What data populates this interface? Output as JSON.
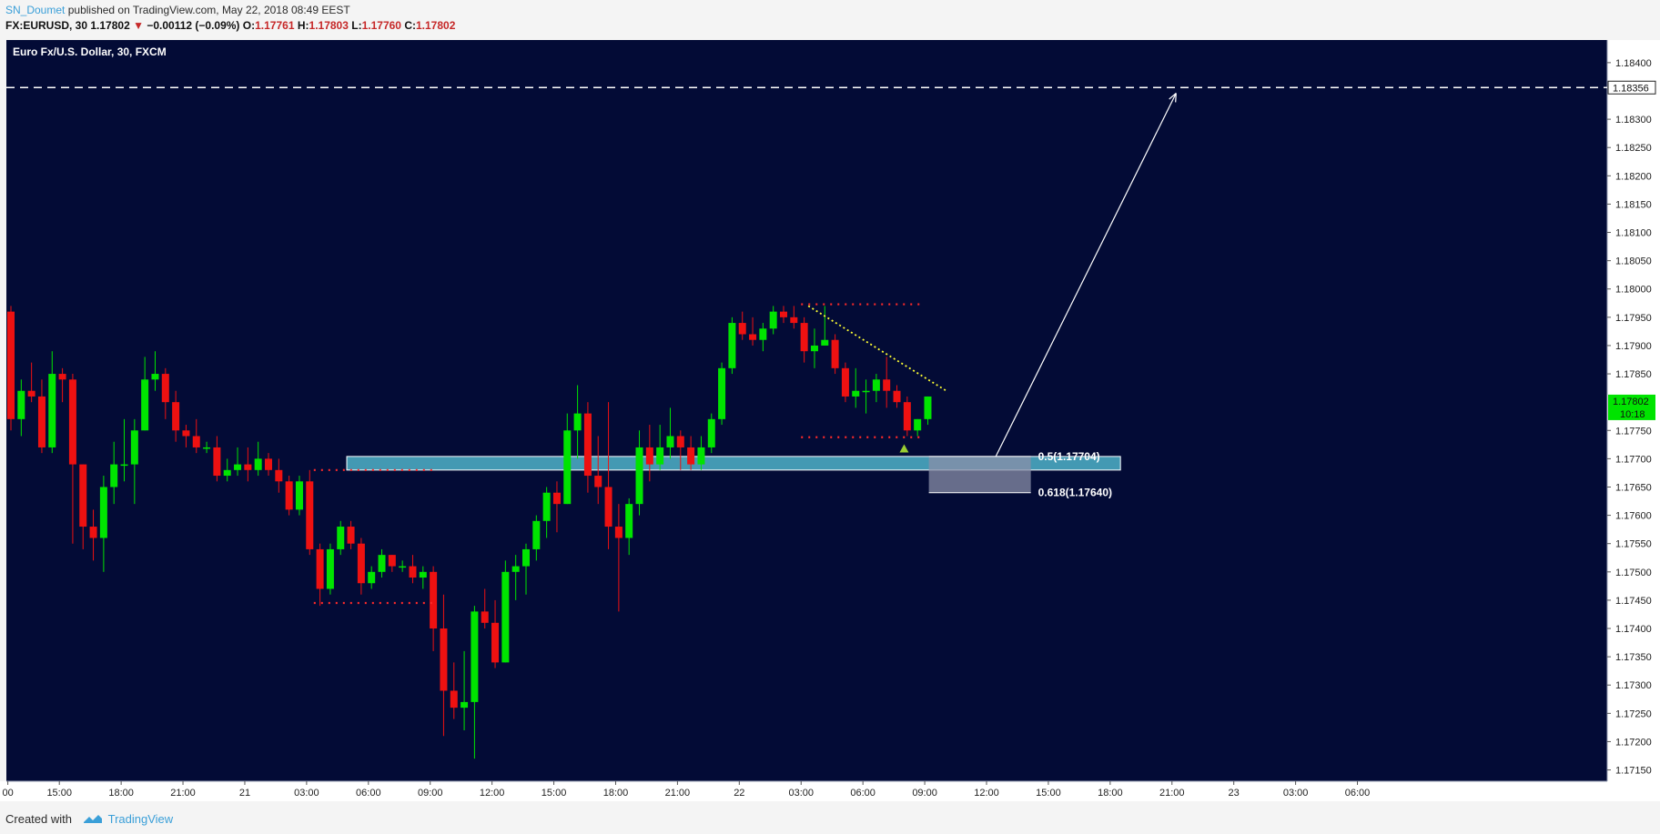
{
  "header": {
    "author": "SN_Doumet",
    "published": "published on TradingView.com, May 22, 2018 08:49 EEST"
  },
  "ohlc": {
    "symbol": "FX:EURUSD, 30",
    "last": "1.17802",
    "change": "−0.00112 (−0.09%)",
    "o_label": "O:",
    "o": "1.17761",
    "h_label": "H:",
    "h": "1.17803",
    "l_label": "L:",
    "l": "1.17760",
    "c_label": "C:",
    "c": "1.17802"
  },
  "chart_title": "Euro Fx/U.S. Dollar, 30, FXCM",
  "footer": {
    "created": "Created with",
    "brand": "TradingView"
  },
  "colors": {
    "background": "#030b36",
    "up": "#00e400",
    "down": "#ee1111",
    "zone": "#4fb3c9",
    "fib_zone": "#8a8fa8",
    "dotted": "#ff2a2a",
    "trend": "#ffff33",
    "text": "#ffffff",
    "axis_bg": "#ffffff",
    "price_tag": "#00e400"
  },
  "chart_data": {
    "type": "candlestick",
    "y_range": [
      1.1713,
      1.1844
    ],
    "y_ticks": [
      "1.18400",
      "1.18300",
      "1.18250",
      "1.18200",
      "1.18150",
      "1.18100",
      "1.18050",
      "1.18000",
      "1.17950",
      "1.17900",
      "1.17850",
      "1.17750",
      "1.17700",
      "1.17650",
      "1.17600",
      "1.17550",
      "1.17500",
      "1.17450",
      "1.17400",
      "1.17350",
      "1.17300",
      "1.17250",
      "1.17200",
      "1.17150"
    ],
    "y_tick_values": [
      1.184,
      1.183,
      1.1825,
      1.182,
      1.1815,
      1.181,
      1.1805,
      1.18,
      1.1795,
      1.179,
      1.1785,
      1.1775,
      1.177,
      1.1765,
      1.176,
      1.1755,
      1.175,
      1.1745,
      1.174,
      1.1735,
      1.173,
      1.1725,
      1.172,
      1.1715
    ],
    "x_ticks": [
      "00",
      "15:00",
      "18:00",
      "21:00",
      "21",
      "03:00",
      "06:00",
      "09:00",
      "12:00",
      "15:00",
      "18:00",
      "21:00",
      "22",
      "03:00",
      "06:00",
      "09:00",
      "12:00",
      "15:00",
      "18:00",
      "21:00",
      "23",
      "03:00",
      "06:00"
    ],
    "x_tick_bars": [
      -0.3,
      4.7,
      10.7,
      16.7,
      22.7,
      28.7,
      34.7,
      40.7,
      46.7,
      52.7,
      58.7,
      64.7,
      70.7,
      76.7,
      82.7,
      88.7,
      94.7,
      100.7,
      106.7,
      112.7,
      118.7,
      124.7,
      130.7
    ],
    "price_tags": {
      "target_level": "1.18356",
      "current": "1.17802",
      "countdown": "10:18"
    },
    "target_level": 1.18356,
    "fib_levels": [
      {
        "label": "0.5(1.17704)",
        "value": 1.17704
      },
      {
        "label": "0.618(1.17640)",
        "value": 1.1764
      }
    ],
    "support_zone": [
      1.1768,
      1.17704
    ],
    "candles": [
      [
        1.1796,
        1.1797,
        1.1775,
        1.1777
      ],
      [
        1.1777,
        1.1784,
        1.1774,
        1.1782
      ],
      [
        1.1782,
        1.1787,
        1.178,
        1.1781
      ],
      [
        1.1781,
        1.1784,
        1.1771,
        1.1772
      ],
      [
        1.1772,
        1.1789,
        1.1771,
        1.1785
      ],
      [
        1.1785,
        1.1786,
        1.178,
        1.1784
      ],
      [
        1.1784,
        1.1785,
        1.1755,
        1.1769
      ],
      [
        1.1769,
        1.1769,
        1.1754,
        1.1758
      ],
      [
        1.1758,
        1.1761,
        1.1752,
        1.1756
      ],
      [
        1.1756,
        1.1767,
        1.175,
        1.1765
      ],
      [
        1.1765,
        1.1773,
        1.1762,
        1.1769
      ],
      [
        1.1769,
        1.1777,
        1.1766,
        1.1769
      ],
      [
        1.1769,
        1.1777,
        1.1762,
        1.1775
      ],
      [
        1.1775,
        1.1788,
        1.1775,
        1.1784
      ],
      [
        1.1784,
        1.1789,
        1.1782,
        1.1785
      ],
      [
        1.1785,
        1.1786,
        1.1777,
        1.178
      ],
      [
        1.178,
        1.1782,
        1.1773,
        1.1775
      ],
      [
        1.1775,
        1.1776,
        1.1772,
        1.1774
      ],
      [
        1.1774,
        1.1777,
        1.1771,
        1.1772
      ],
      [
        1.1772,
        1.1773,
        1.1771,
        1.1772
      ],
      [
        1.1772,
        1.1774,
        1.1766,
        1.1767
      ],
      [
        1.1767,
        1.177,
        1.1766,
        1.1768
      ],
      [
        1.1768,
        1.1772,
        1.1767,
        1.1769
      ],
      [
        1.1769,
        1.1772,
        1.1766,
        1.1768
      ],
      [
        1.1768,
        1.1773,
        1.1767,
        1.177
      ],
      [
        1.177,
        1.1771,
        1.1767,
        1.1768
      ],
      [
        1.1768,
        1.177,
        1.1764,
        1.1766
      ],
      [
        1.1766,
        1.1767,
        1.176,
        1.1761
      ],
      [
        1.1761,
        1.1767,
        1.176,
        1.1766
      ],
      [
        1.1766,
        1.1768,
        1.1753,
        1.1754
      ],
      [
        1.1754,
        1.1755,
        1.1744,
        1.1747
      ],
      [
        1.1747,
        1.1755,
        1.1746,
        1.1754
      ],
      [
        1.1754,
        1.1759,
        1.1753,
        1.1758
      ],
      [
        1.1758,
        1.1759,
        1.1754,
        1.1755
      ],
      [
        1.1755,
        1.1756,
        1.1746,
        1.1748
      ],
      [
        1.1748,
        1.1751,
        1.1747,
        1.175
      ],
      [
        1.175,
        1.1754,
        1.1749,
        1.1753
      ],
      [
        1.1753,
        1.1753,
        1.175,
        1.1751
      ],
      [
        1.1751,
        1.1752,
        1.175,
        1.1751
      ],
      [
        1.1751,
        1.1753,
        1.1748,
        1.1749
      ],
      [
        1.1749,
        1.1751,
        1.1747,
        1.175
      ],
      [
        1.175,
        1.1751,
        1.1736,
        1.174
      ],
      [
        1.174,
        1.1746,
        1.1721,
        1.1729
      ],
      [
        1.1729,
        1.1734,
        1.1724,
        1.1726
      ],
      [
        1.1726,
        1.1736,
        1.1722,
        1.1727
      ],
      [
        1.1727,
        1.1744,
        1.1717,
        1.1743
      ],
      [
        1.1743,
        1.1747,
        1.174,
        1.1741
      ],
      [
        1.1741,
        1.1745,
        1.1733,
        1.1734
      ],
      [
        1.1734,
        1.1752,
        1.1734,
        1.175
      ],
      [
        1.175,
        1.1753,
        1.1745,
        1.1751
      ],
      [
        1.1751,
        1.1755,
        1.1746,
        1.1754
      ],
      [
        1.1754,
        1.176,
        1.1752,
        1.1759
      ],
      [
        1.1759,
        1.1765,
        1.1756,
        1.1764
      ],
      [
        1.1764,
        1.1766,
        1.1757,
        1.1762
      ],
      [
        1.1762,
        1.1778,
        1.1762,
        1.1775
      ],
      [
        1.1775,
        1.1783,
        1.177,
        1.1778
      ],
      [
        1.1778,
        1.178,
        1.1764,
        1.1767
      ],
      [
        1.1767,
        1.1774,
        1.1762,
        1.1765
      ],
      [
        1.1765,
        1.178,
        1.1754,
        1.1758
      ],
      [
        1.1758,
        1.1762,
        1.1743,
        1.1756
      ],
      [
        1.1756,
        1.1763,
        1.1753,
        1.1762
      ],
      [
        1.1762,
        1.1775,
        1.176,
        1.1772
      ],
      [
        1.1772,
        1.1776,
        1.1766,
        1.1769
      ],
      [
        1.1769,
        1.1776,
        1.1768,
        1.1772
      ],
      [
        1.1772,
        1.1779,
        1.177,
        1.1774
      ],
      [
        1.1774,
        1.1775,
        1.1768,
        1.1772
      ],
      [
        1.1772,
        1.1774,
        1.1768,
        1.1769
      ],
      [
        1.1769,
        1.1774,
        1.1768,
        1.1772
      ],
      [
        1.1772,
        1.1778,
        1.1771,
        1.1777
      ],
      [
        1.1777,
        1.1787,
        1.1776,
        1.1786
      ],
      [
        1.1786,
        1.1795,
        1.1785,
        1.1794
      ],
      [
        1.1794,
        1.1796,
        1.1791,
        1.1792
      ],
      [
        1.1792,
        1.1795,
        1.179,
        1.1791
      ],
      [
        1.1791,
        1.1794,
        1.1789,
        1.1793
      ],
      [
        1.1793,
        1.1797,
        1.1792,
        1.1796
      ],
      [
        1.1796,
        1.1797,
        1.1794,
        1.1795
      ],
      [
        1.1795,
        1.1797,
        1.1793,
        1.1794
      ],
      [
        1.1794,
        1.1795,
        1.1787,
        1.1789
      ],
      [
        1.1789,
        1.1793,
        1.1786,
        1.179
      ],
      [
        1.179,
        1.1797,
        1.179,
        1.1791
      ],
      [
        1.1791,
        1.1792,
        1.1785,
        1.1786
      ],
      [
        1.1786,
        1.1787,
        1.178,
        1.1781
      ],
      [
        1.1781,
        1.1786,
        1.1779,
        1.1782
      ],
      [
        1.1782,
        1.1784,
        1.1778,
        1.1782
      ],
      [
        1.1782,
        1.1785,
        1.178,
        1.1784
      ],
      [
        1.1784,
        1.1788,
        1.1779,
        1.1782
      ],
      [
        1.1782,
        1.1783,
        1.1779,
        1.178
      ],
      [
        1.178,
        1.1781,
        1.1774,
        1.1775
      ],
      [
        1.1775,
        1.1777,
        1.1774,
        1.1777
      ],
      [
        1.1777,
        1.1781,
        1.1776,
        1.1781
      ]
    ]
  }
}
